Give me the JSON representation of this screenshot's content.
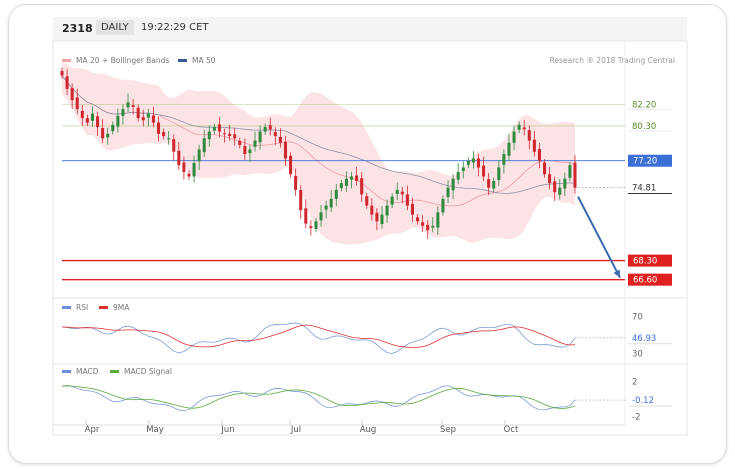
{
  "header": {
    "symbol": "2318",
    "period": "DAILY",
    "time": "19:22:29 CET"
  },
  "chart_data": [
    {
      "type": "candlestick",
      "panel": "price",
      "legend": [
        {
          "name": "MA 20 + Bollinger Bands",
          "color": "#f4a3a8"
        },
        {
          "name": "MA 50",
          "color": "#3a5a9a"
        }
      ],
      "watermark": "Research ® 2018 Trading Central",
      "x_tick_labels": [
        "Apr",
        "May",
        "Jun",
        "Jul",
        "Aug",
        "Sep",
        "Oct"
      ],
      "ylim": [
        65.5,
        86.0
      ],
      "levels": [
        {
          "value": 82.2,
          "label": "82.20",
          "color": "#8fbf5a",
          "style": "thin"
        },
        {
          "value": 80.3,
          "label": "80.30",
          "color": "#8fbf5a",
          "style": "thin"
        },
        {
          "value": 77.2,
          "label": "77.20",
          "color": "#3b6fd8",
          "style": "solid-badge"
        },
        {
          "value": 74.81,
          "label": "74.81",
          "color": "#333333",
          "style": "last-price"
        },
        {
          "value": 68.3,
          "label": "68.30",
          "color": "#e02020",
          "style": "solid-badge"
        },
        {
          "value": 66.6,
          "label": "66.60",
          "color": "#e02020",
          "style": "solid-badge"
        }
      ],
      "forecast_arrow": {
        "from": 74.0,
        "to": 66.6,
        "direction": "down"
      },
      "closes": [
        84.8,
        83.6,
        82.6,
        81.8,
        81.0,
        80.6,
        81.4,
        80.2,
        79.2,
        79.6,
        80.4,
        81.2,
        81.8,
        82.4,
        82.0,
        81.0,
        80.8,
        81.4,
        80.6,
        79.6,
        79.4,
        79.2,
        78.0,
        76.8,
        76.2,
        75.8,
        77.0,
        78.2,
        79.2,
        79.8,
        80.2,
        79.8,
        79.6,
        79.4,
        79.2,
        78.6,
        77.8,
        78.2,
        79.0,
        79.8,
        80.2,
        80.0,
        79.4,
        78.8,
        77.4,
        76.0,
        74.6,
        72.8,
        71.6,
        71.2,
        71.8,
        72.6,
        73.2,
        73.8,
        74.6,
        75.2,
        75.6,
        75.8,
        75.4,
        74.2,
        73.2,
        72.4,
        71.8,
        72.4,
        73.2,
        74.0,
        74.6,
        74.2,
        73.2,
        72.4,
        71.8,
        71.4,
        71.0,
        71.4,
        72.6,
        73.8,
        74.8,
        75.6,
        76.2,
        76.6,
        77.2,
        77.4,
        76.6,
        75.8,
        74.8,
        75.4,
        76.6,
        77.8,
        78.8,
        79.8,
        80.4,
        80.0,
        79.0,
        78.0,
        77.2,
        76.0,
        75.2,
        74.4,
        74.8,
        75.6,
        76.8,
        74.81
      ],
      "bollinger_upper_shape": "computed from MA20 ± band",
      "ma50_note": "smoothed overlay"
    },
    {
      "type": "line",
      "panel": "RSI",
      "series": [
        {
          "name": "RSI",
          "color": "#6a8fd8"
        },
        {
          "name": "9MA",
          "color": "#e03030"
        }
      ],
      "ticks": [
        70,
        30
      ],
      "ylim": [
        25,
        75
      ],
      "last_value": {
        "value": 46.93,
        "label": "46.93"
      }
    },
    {
      "type": "line",
      "panel": "MACD",
      "series": [
        {
          "name": "MACD",
          "color": "#6a8fd8"
        },
        {
          "name": "MACD Signal",
          "color": "#5aaa3a"
        }
      ],
      "ticks": [
        2,
        -2
      ],
      "ylim": [
        -2.4,
        2.4
      ],
      "last_value": {
        "value": -0.12,
        "label": "-0.12"
      }
    }
  ]
}
